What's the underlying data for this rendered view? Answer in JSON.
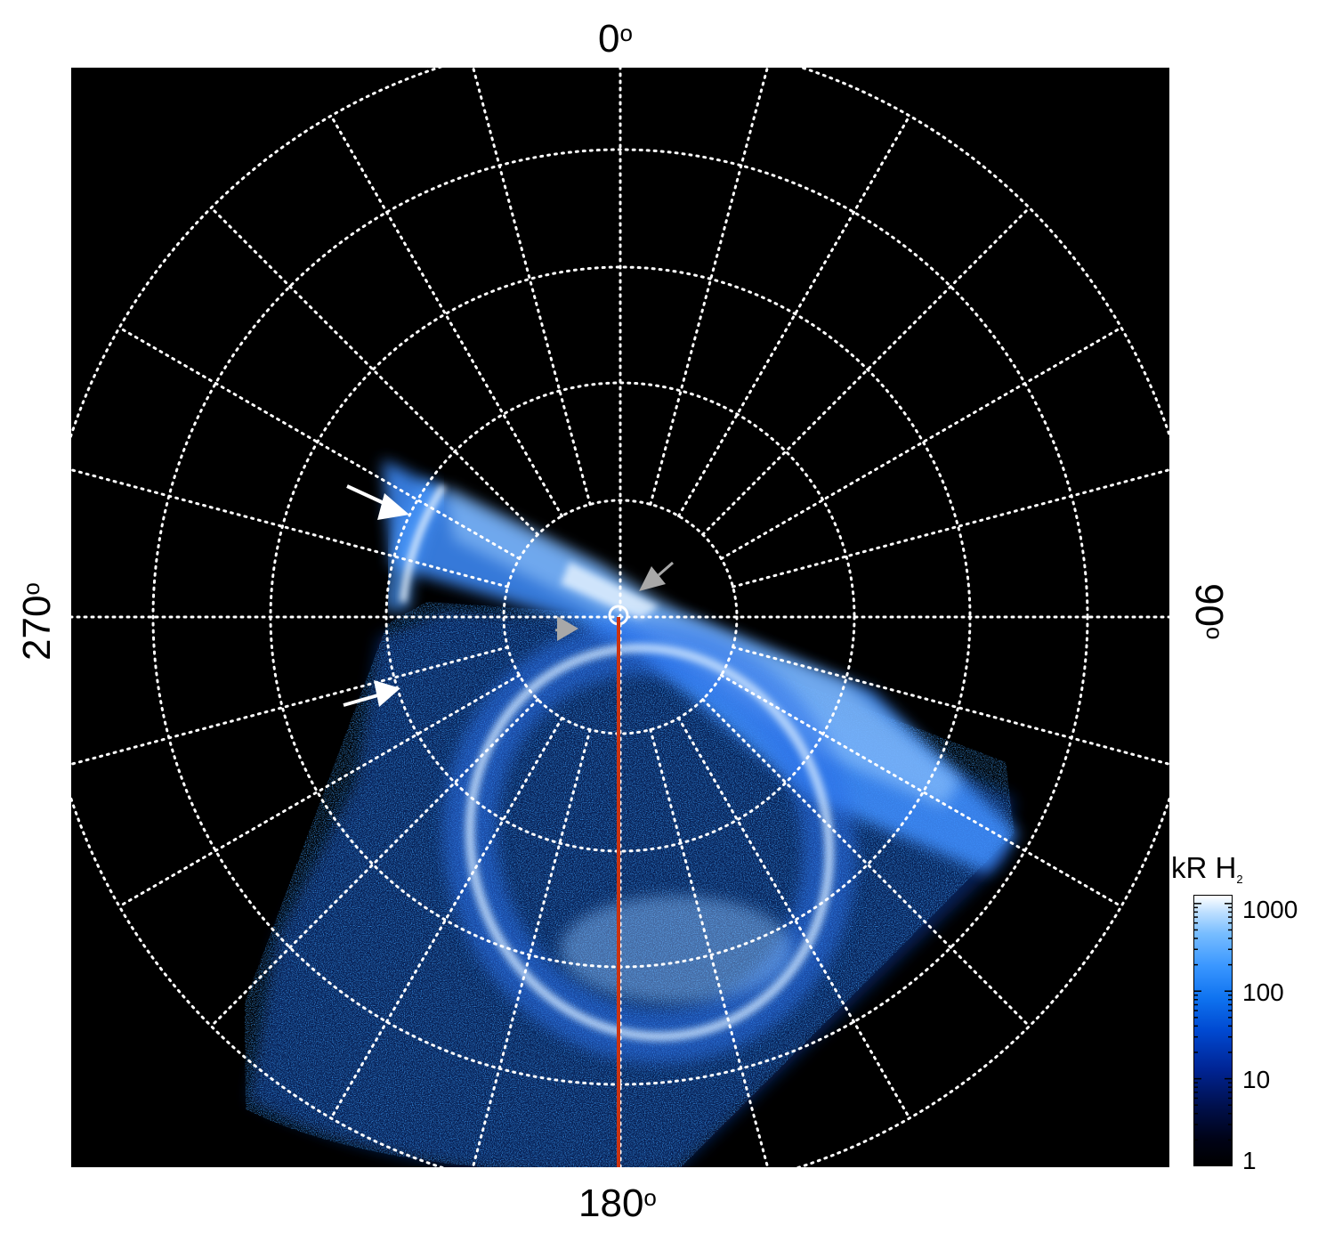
{
  "figure": {
    "axis_labels": {
      "top": {
        "value": "0",
        "deg": "o"
      },
      "bottom": {
        "value": "180",
        "deg": "o"
      },
      "left": {
        "value": "270",
        "deg": "o"
      },
      "right": {
        "value": "90",
        "deg": "o"
      }
    },
    "colorbar": {
      "title_main": "kR H",
      "title_sub": "2",
      "tick_labels": [
        "1000",
        "100",
        "10",
        "1"
      ],
      "scale": "log",
      "colors": [
        "#000000",
        "#00104d",
        "#0049d1",
        "#3a97ff",
        "#ffffff"
      ]
    },
    "meridian_line_color": "#cc3311",
    "grid_color": "#ffffff",
    "arrow_colors": {
      "white": "#ffffff",
      "grey": "#a8a8a8"
    }
  }
}
